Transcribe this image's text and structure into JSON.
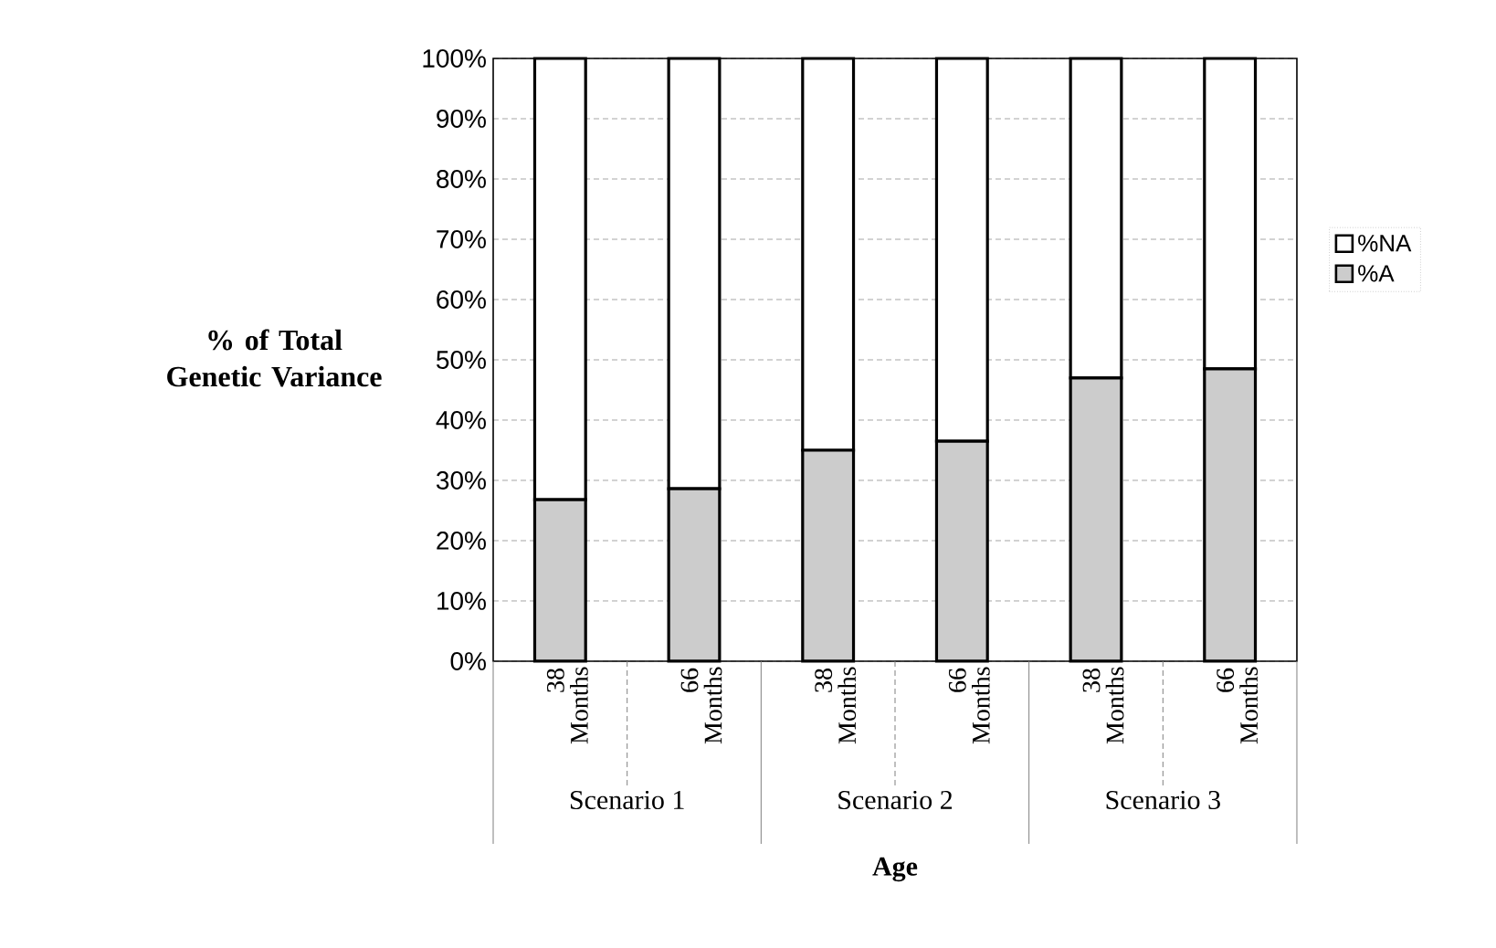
{
  "chart_data": {
    "type": "bar",
    "stacked": true,
    "ylabel": "% of Total Genetic Variance",
    "xlabel": "Age",
    "categories": [
      "38 Months",
      "66 Months",
      "38 Months",
      "66 Months",
      "38 Months",
      "66 Months"
    ],
    "annotations": [
      "Scenario 1",
      "Scenario 2",
      "Scenario 3"
    ],
    "series": [
      {
        "name": "%A",
        "color": "#cccccc",
        "values": [
          26.8,
          28.6,
          35,
          36.5,
          47,
          48.5
        ]
      },
      {
        "name": "%NA",
        "color": "#ffffff",
        "values": [
          73.2,
          71.4,
          65,
          63.5,
          53,
          51.5
        ]
      }
    ],
    "ylim": [
      0,
      100
    ],
    "yticks": [
      {
        "value": 0,
        "label": "0%"
      },
      {
        "value": 10,
        "label": "10%"
      },
      {
        "value": 20,
        "label": "20%"
      },
      {
        "value": 30,
        "label": "30%"
      },
      {
        "value": 40,
        "label": "40%"
      },
      {
        "value": 50,
        "label": "50%"
      },
      {
        "value": 60,
        "label": "60%"
      },
      {
        "value": 70,
        "label": "70%"
      },
      {
        "value": 80,
        "label": "80%"
      },
      {
        "value": 90,
        "label": "90%"
      },
      {
        "value": 100,
        "label": "100%"
      }
    ],
    "grid": "y",
    "legend": "right"
  }
}
